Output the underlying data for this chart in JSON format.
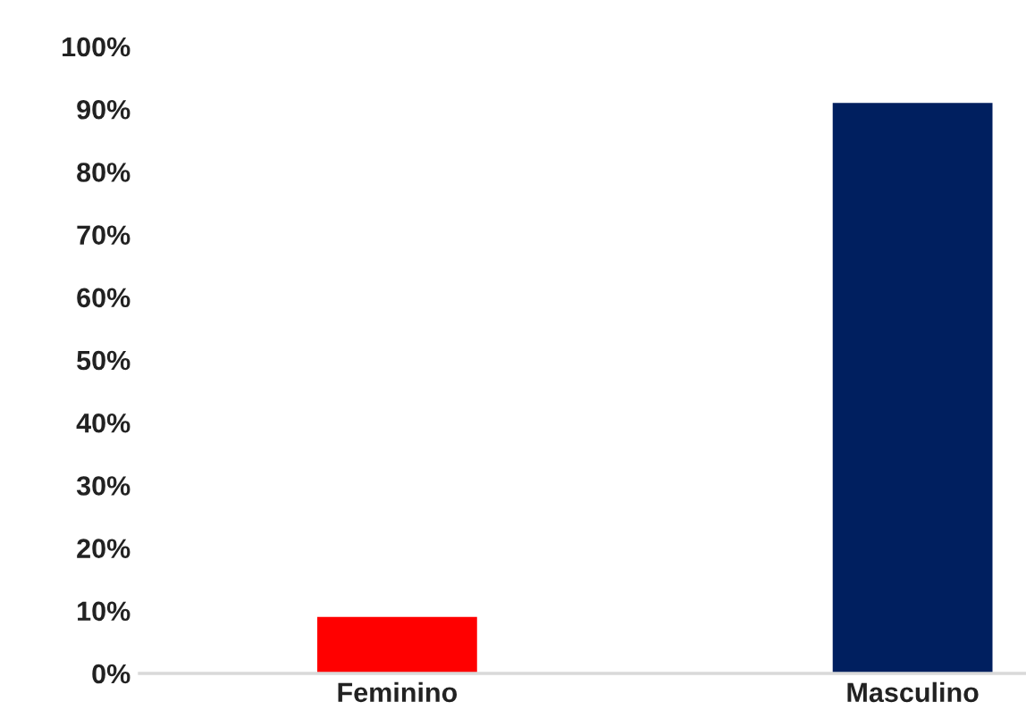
{
  "chart_data": {
    "type": "bar",
    "categories": [
      "Feminino",
      "Masculino"
    ],
    "values": [
      9,
      91
    ],
    "colors": [
      "#ff0000",
      "#001f5f"
    ],
    "ylim": [
      0,
      100
    ],
    "yticks": [
      {
        "value": 0,
        "label": "0%"
      },
      {
        "value": 10,
        "label": "10%"
      },
      {
        "value": 20,
        "label": "20%"
      },
      {
        "value": 30,
        "label": "30%"
      },
      {
        "value": 40,
        "label": "40%"
      },
      {
        "value": 50,
        "label": "50%"
      },
      {
        "value": 60,
        "label": "60%"
      },
      {
        "value": 70,
        "label": "70%"
      },
      {
        "value": 80,
        "label": "80%"
      },
      {
        "value": 90,
        "label": "90%"
      },
      {
        "value": 100,
        "label": "100%"
      }
    ],
    "grid": false,
    "legend": false
  }
}
